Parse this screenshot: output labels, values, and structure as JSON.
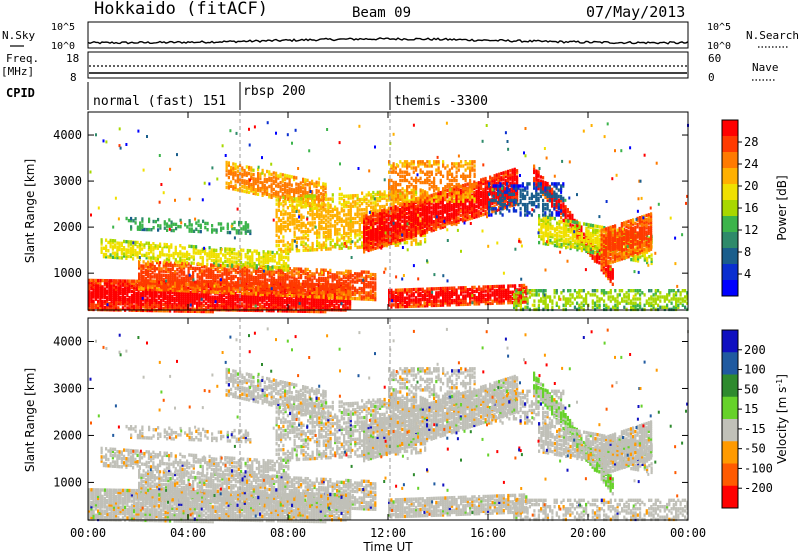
{
  "header": {
    "station": "Hokkaido (fitACF)",
    "beam": "Beam 09",
    "date": "07/May/2013"
  },
  "top_panel": {
    "left_label": "N.Sky",
    "right_label": "N.Search",
    "left_ticks": [
      "10^5",
      "10^0"
    ],
    "right_ticks": [
      "10^5",
      "10^0"
    ]
  },
  "freq_panel": {
    "left_label_line1": "Freq.",
    "left_label_line2": "[MHz]",
    "right_label": "Nave",
    "left_ticks": [
      "18",
      "8"
    ],
    "right_ticks": [
      "60",
      "0"
    ]
  },
  "cpid": {
    "label": "CPID",
    "segments": [
      {
        "label": "normal (fast) 151",
        "start": "00:00"
      },
      {
        "label": "rbsp 200",
        "start": "06:00"
      },
      {
        "label": "themis -3300",
        "start": "12:00"
      }
    ]
  },
  "chart_data": [
    {
      "type": "heatmap",
      "xlabel": "Time UT",
      "ylabel": "Slant Range [km]",
      "x_ticks": [
        "00:00",
        "04:00",
        "08:00",
        "12:00",
        "16:00",
        "20:00",
        "00:00"
      ],
      "y_ticks": [
        "1000",
        "2000",
        "3000",
        "4000"
      ],
      "y_ticks_values": [
        1000,
        2000,
        3000,
        4000
      ],
      "ylim": [
        200,
        4500
      ],
      "xlim_hours": [
        0,
        24
      ],
      "colorbar": {
        "label": "Power [dB]",
        "ticks": [
          "28",
          "24",
          "20",
          "16",
          "12",
          "8",
          "4"
        ],
        "colors": [
          "#ff0000",
          "#ff3a00",
          "#ff7a00",
          "#ffb000",
          "#f0e000",
          "#a8d800",
          "#3cb44b",
          "#2e8a6a",
          "#1a5e8c",
          "#0a2fd0",
          "#0000ff"
        ]
      }
    },
    {
      "type": "heatmap",
      "xlabel": "Time UT",
      "ylabel": "Slant Range [km]",
      "x_ticks": [
        "00:00",
        "04:00",
        "08:00",
        "12:00",
        "16:00",
        "20:00",
        "00:00"
      ],
      "y_ticks": [
        "1000",
        "2000",
        "3000",
        "4000"
      ],
      "ylim": [
        200,
        4500
      ],
      "colorbar": {
        "label": "Velocity [m s",
        "label_sup": "-1",
        "label_end": "]",
        "ticks": [
          "200",
          "100",
          "50",
          "15",
          "-15",
          "-50",
          "-100",
          "-200"
        ],
        "colors": [
          "#1010c0",
          "#205aa0",
          "#2e8a2e",
          "#66d22a",
          "#c0c0b8",
          "#ff9a00",
          "#ff5a00",
          "#ff0000"
        ]
      }
    }
  ]
}
